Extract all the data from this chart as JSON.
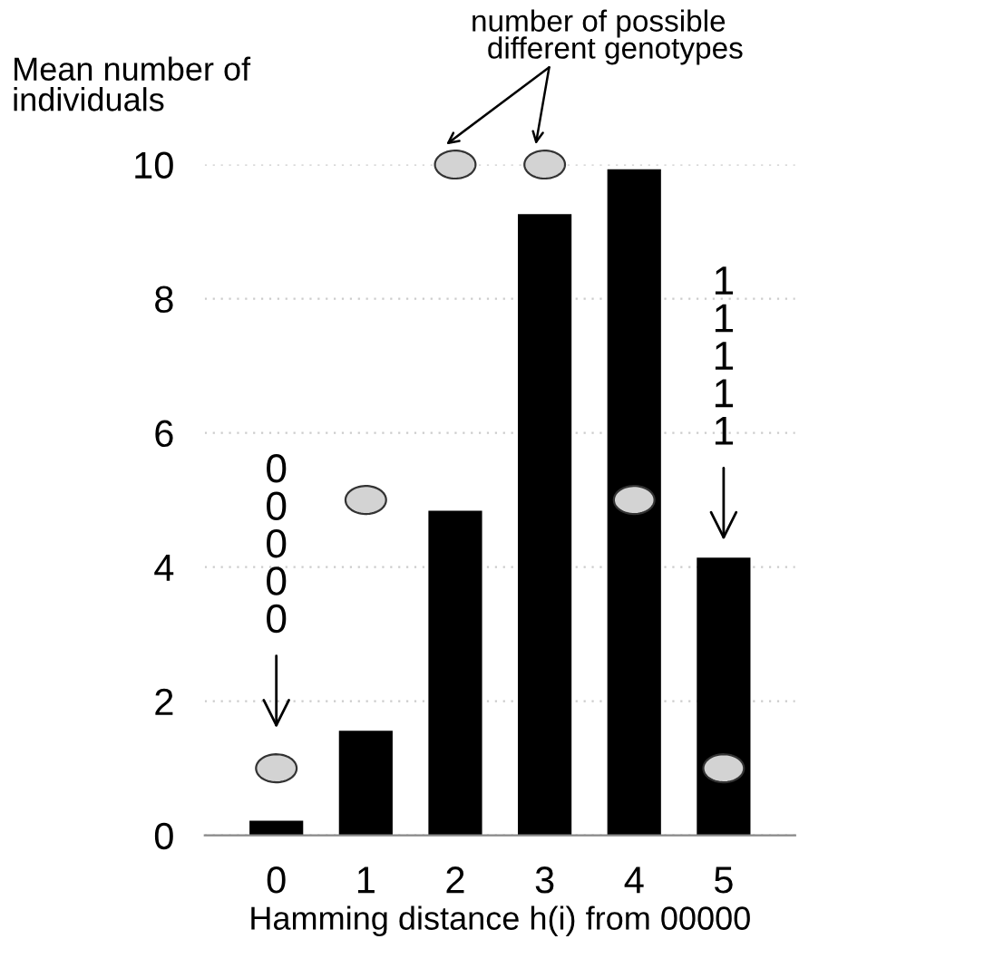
{
  "chart_data": {
    "type": "bar",
    "ylabel": "Mean number of individuals",
    "xlabel": "Hamming distance h(i) from 00000",
    "categories": [
      "0",
      "1",
      "2",
      "3",
      "4",
      "5"
    ],
    "series": [
      {
        "type": "bar",
        "color": "#000000",
        "values": [
          0.22,
          1.56,
          4.84,
          9.26,
          9.93,
          4.14
        ]
      },
      {
        "type": "scatter",
        "name": "number of possible different genotypes",
        "color": "#d3d3d3",
        "values": [
          1,
          5,
          10,
          10,
          5,
          1
        ]
      }
    ],
    "ylim": [
      0,
      10
    ],
    "yticks": [
      0,
      2,
      4,
      6,
      8,
      10
    ],
    "grid": "y",
    "legend": false,
    "annotations": [
      "00000",
      "11111"
    ]
  }
}
